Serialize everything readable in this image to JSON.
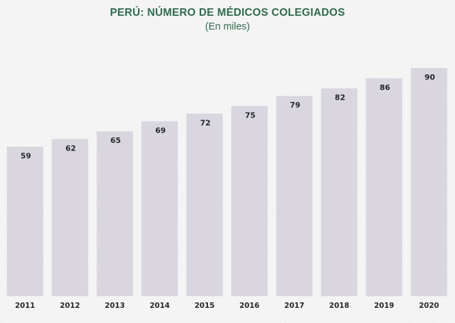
{
  "colors": {
    "title": "#2e6b4e",
    "bar": "#d9d6e0",
    "label": "#262626",
    "background": "#f2f2f2"
  },
  "chart_data": {
    "type": "bar",
    "title": "PERÚ: NÚMERO DE MÉDICOS COLEGIADOS",
    "subtitle": "(En miles)",
    "categories": [
      "2011",
      "2012",
      "2013",
      "2014",
      "2015",
      "2016",
      "2017",
      "2018",
      "2019",
      "2020"
    ],
    "values": [
      59,
      62,
      65,
      69,
      72,
      75,
      79,
      82,
      86,
      90
    ],
    "data_labels": [
      "59",
      "62",
      "65",
      "69",
      "72",
      "75",
      "79",
      "82",
      "86",
      "90"
    ],
    "xlabel": "",
    "ylabel": "",
    "ylim": [
      0,
      90
    ],
    "grid": false,
    "legend": "none"
  }
}
